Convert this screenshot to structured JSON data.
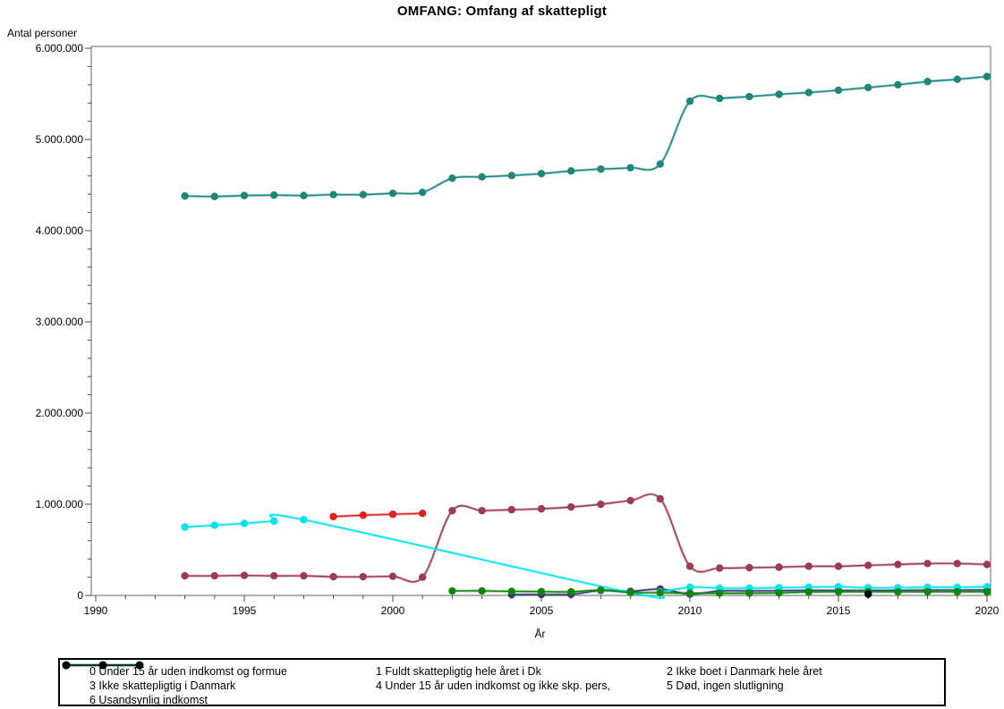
{
  "title": "OMFANG: Omfang af skattepligt",
  "chart_data": {
    "type": "line",
    "title": "OMFANG: Omfang af skattepligt",
    "xlabel": "År",
    "ylabel": "Antal personer",
    "xlim": [
      1990,
      2020
    ],
    "ylim": [
      0,
      6000000
    ],
    "grid": false,
    "legend_position": "bottom-box-3-columns",
    "line_style": "spline-with-circle-markers",
    "x_tick_values": [
      1990,
      1995,
      2000,
      2005,
      2010,
      2015,
      2020
    ],
    "x_tick_labels": [
      "1990",
      "1995",
      "2000",
      "2005",
      "2010",
      "2015",
      "2020"
    ],
    "x_minor_step": 1,
    "y_tick_values": [
      0,
      1000000,
      2000000,
      3000000,
      4000000,
      5000000,
      6000000
    ],
    "y_tick_labels": [
      "0",
      "1.000.000",
      "2.000.000",
      "3.000.000",
      "4.000.000",
      "5.000.000",
      "6.000.000"
    ],
    "y_minor_step": 200000,
    "series": [
      {
        "name": "0 Under 15 år uden indkomst og formue",
        "color": "#e32020",
        "x": [
          1998,
          1999,
          2000,
          2001
        ],
        "y": [
          865000,
          880000,
          890000,
          900000
        ]
      },
      {
        "name": "1 Fuldt skattepligtig hele året i Dk",
        "color": "#1d867d",
        "x": [
          1993,
          1994,
          1995,
          1996,
          1997,
          1998,
          1999,
          2000,
          2001,
          2002,
          2003,
          2004,
          2005,
          2006,
          2007,
          2008,
          2009,
          2010,
          2011,
          2012,
          2013,
          2014,
          2015,
          2016,
          2017,
          2018,
          2019,
          2020
        ],
        "y": [
          4380000,
          4375000,
          4385000,
          4390000,
          4385000,
          4395000,
          4395000,
          4410000,
          4420000,
          4575000,
          4590000,
          4605000,
          4625000,
          4655000,
          4675000,
          4690000,
          4730000,
          5420000,
          5450000,
          5470000,
          5495000,
          5515000,
          5540000,
          5570000,
          5600000,
          5635000,
          5660000,
          5690000
        ]
      },
      {
        "name": "2 Ikke boet i Danmark hele året",
        "color": "#9c3b52",
        "x": [
          1993,
          1994,
          1995,
          1996,
          1997,
          1998,
          1999,
          2000,
          2001,
          2002,
          2003,
          2004,
          2005,
          2006,
          2007,
          2008,
          2009,
          2010,
          2011,
          2012,
          2013,
          2014,
          2015,
          2016,
          2017,
          2018,
          2019,
          2020
        ],
        "y": [
          215000,
          215000,
          220000,
          215000,
          215000,
          205000,
          205000,
          210000,
          200000,
          930000,
          930000,
          940000,
          950000,
          970000,
          1000000,
          1040000,
          1060000,
          320000,
          300000,
          305000,
          310000,
          320000,
          320000,
          330000,
          340000,
          350000,
          350000,
          340000
        ]
      },
      {
        "name": "3 Ikke skattepligtig i Danmark",
        "color": "#3a3a72",
        "x": [
          2004,
          2005,
          2006,
          2007,
          2008,
          2009,
          2010,
          2011,
          2012,
          2013,
          2014,
          2015,
          2016,
          2017,
          2018,
          2019,
          2020
        ],
        "y": [
          10000,
          10000,
          12000,
          55000,
          45000,
          70000,
          15000,
          50000,
          50000,
          52000,
          55000,
          55000,
          55000,
          55000,
          58000,
          58000,
          60000
        ]
      },
      {
        "name": "4 Under 15 år uden indkomst og ikke skp. pers,",
        "color": "#00e2ee",
        "x": [
          1993,
          1994,
          1995,
          1996,
          1997,
          2008,
          2009,
          2010,
          2011,
          2012,
          2013,
          2014,
          2015,
          2016,
          2017,
          2018,
          2019,
          2020
        ],
        "y": [
          750000,
          770000,
          790000,
          815000,
          830000,
          30000,
          40000,
          90000,
          80000,
          80000,
          85000,
          90000,
          95000,
          85000,
          85000,
          90000,
          90000,
          95000
        ]
      },
      {
        "name": "5 Død, ingen slutligning",
        "color": "#0c870c",
        "x": [
          2002,
          2003,
          2004,
          2005,
          2006,
          2007,
          2008,
          2009,
          2010,
          2011,
          2012,
          2013,
          2014,
          2015,
          2016,
          2017,
          2018,
          2019,
          2020
        ],
        "y": [
          50000,
          50000,
          45000,
          42000,
          40000,
          58000,
          32000,
          30000,
          25000,
          25000,
          25000,
          28000,
          38000,
          40000,
          40000,
          40000,
          40000,
          40000,
          40000
        ]
      },
      {
        "name": "6 Usandsynlig indkomst",
        "color": "#000000",
        "x": [
          2016
        ],
        "y": [
          15000
        ]
      }
    ]
  }
}
